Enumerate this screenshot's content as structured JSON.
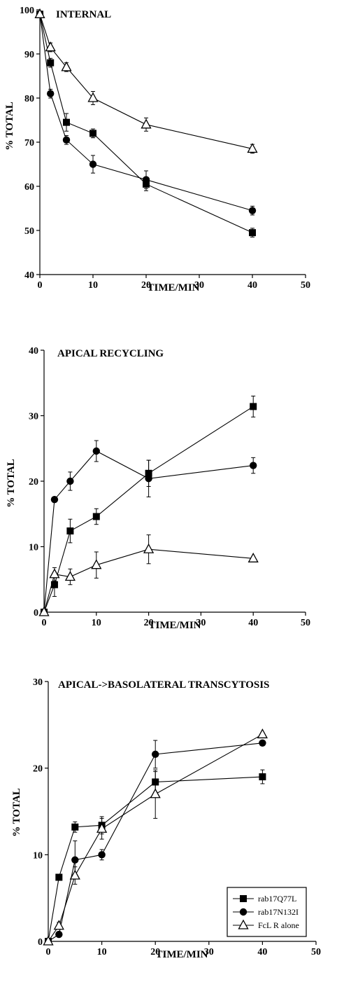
{
  "chart_data": [
    {
      "type": "line",
      "title": "INTERNAL",
      "xlabel": "TIME/MIN",
      "ylabel": "% TOTAL",
      "xlim": [
        0,
        50
      ],
      "ylim": [
        40,
        100
      ],
      "xticks": [
        "0",
        "10",
        "20",
        "30",
        "40",
        "50"
      ],
      "yticks": [
        "40",
        "50",
        "60",
        "70",
        "80",
        "90",
        "100"
      ],
      "grid": false,
      "series": [
        {
          "marker": "square",
          "x": [
            0,
            2,
            5,
            10,
            20,
            40
          ],
          "y": [
            99,
            88,
            74.5,
            72,
            60.5,
            49.5
          ],
          "err": [
            0,
            1,
            2,
            1,
            1.5,
            1
          ]
        },
        {
          "marker": "circle",
          "x": [
            0,
            2,
            5,
            10,
            20,
            40
          ],
          "y": [
            99,
            81,
            70.5,
            65,
            61.5,
            54.5
          ],
          "err": [
            0,
            1,
            1,
            2,
            2,
            1
          ]
        },
        {
          "marker": "triangle",
          "x": [
            0,
            2,
            5,
            10,
            20,
            40
          ],
          "y": [
            99,
            91.5,
            87,
            80,
            74,
            68.5
          ],
          "err": [
            0,
            1,
            1,
            1.5,
            1.5,
            1
          ]
        }
      ]
    },
    {
      "type": "line",
      "title": "APICAL RECYCLING",
      "xlabel": "TIME/MIN",
      "ylabel": "% TOTAL",
      "xlim": [
        0,
        50
      ],
      "ylim": [
        0,
        40
      ],
      "xticks": [
        "0",
        "10",
        "20",
        "30",
        "40",
        "50"
      ],
      "yticks": [
        "0",
        "10",
        "20",
        "30",
        "40"
      ],
      "grid": false,
      "series": [
        {
          "marker": "square",
          "x": [
            0,
            2,
            5,
            10,
            20,
            40
          ],
          "y": [
            0,
            4.2,
            12.4,
            14.6,
            21.2,
            31.4
          ],
          "err": [
            0,
            1.8,
            1.8,
            1.2,
            2,
            1.6
          ]
        },
        {
          "marker": "circle",
          "x": [
            0,
            2,
            5,
            10,
            20,
            40
          ],
          "y": [
            0,
            17.2,
            20,
            24.6,
            20.4,
            22.4
          ],
          "err": [
            0,
            0,
            1.4,
            1.6,
            2.8,
            1.2
          ]
        },
        {
          "marker": "triangle",
          "x": [
            0,
            2,
            5,
            10,
            20,
            40
          ],
          "y": [
            0,
            5.8,
            5.4,
            7.2,
            9.6,
            8.2
          ],
          "err": [
            0,
            1,
            1.2,
            2,
            2.2,
            0
          ]
        }
      ]
    },
    {
      "type": "line",
      "title": "APICAL->BASOLATERAL TRANSCYTOSIS",
      "xlabel": "TIME/MIN",
      "ylabel": "% TOTAL",
      "xlim": [
        0,
        50
      ],
      "ylim": [
        0,
        30
      ],
      "xticks": [
        "0",
        "10",
        "20",
        "30",
        "40",
        "50"
      ],
      "yticks": [
        "0",
        "10",
        "20",
        "30"
      ],
      "grid": false,
      "legend": {
        "placement": "bottom-right",
        "entries": [
          {
            "label": "rab17Q77L",
            "marker": "square"
          },
          {
            "label": "rab17N132I",
            "marker": "circle"
          },
          {
            "label": "FcL R alone",
            "marker": "triangle"
          }
        ]
      },
      "series": [
        {
          "marker": "square",
          "x": [
            0,
            2,
            5,
            10,
            20,
            40
          ],
          "y": [
            0,
            7.4,
            13.2,
            13.4,
            18.4,
            19
          ],
          "err": [
            0,
            0,
            0.6,
            1,
            1.2,
            0.8
          ]
        },
        {
          "marker": "circle",
          "x": [
            0,
            2,
            5,
            10,
            20,
            40
          ],
          "y": [
            0,
            0.8,
            9.4,
            10,
            21.6,
            22.9
          ],
          "err": [
            0,
            0,
            2.2,
            0.6,
            1.6,
            0
          ]
        },
        {
          "marker": "triangle",
          "x": [
            0,
            2,
            5,
            10,
            20,
            40
          ],
          "y": [
            0,
            1.8,
            7.6,
            13,
            17,
            23.9
          ],
          "err": [
            0,
            0.4,
            1,
            1.2,
            2.8,
            0
          ]
        }
      ]
    }
  ]
}
